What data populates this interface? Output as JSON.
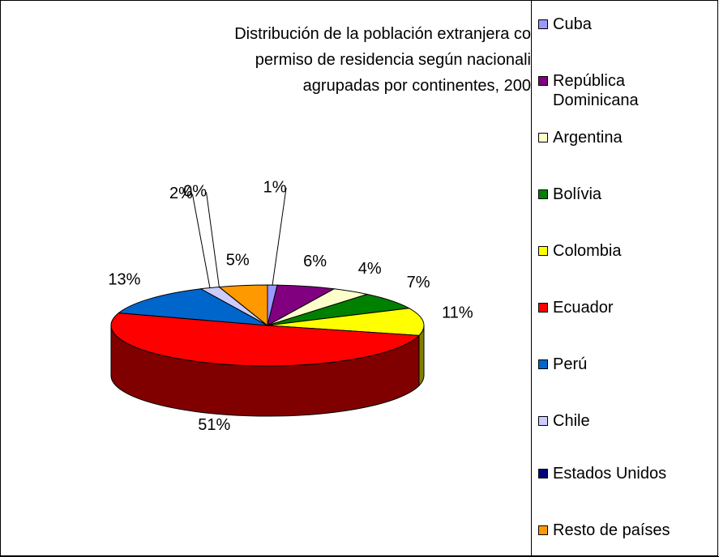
{
  "chart_data": {
    "type": "pie3d",
    "title": [
      "Distribución de la población extranjera co",
      "permiso de residencia según nacionali",
      "agrupadas por continentes, 200"
    ],
    "categories": [
      "Cuba",
      "República Dominicana",
      "Argentina",
      "Bolívia",
      "Colombia",
      "Ecuador",
      "Perú",
      "Chile",
      "Estados Unidos",
      "Resto de países"
    ],
    "values": [
      1,
      6,
      4,
      7,
      11,
      51,
      13,
      2,
      0,
      5
    ],
    "value_labels": [
      "1%",
      "6%",
      "4%",
      "7%",
      "11%",
      "51%",
      "13%",
      "2%",
      "0%",
      "5%"
    ],
    "colors": [
      "#9999ff",
      "#800080",
      "#ffffcc",
      "#008000",
      "#ffff00",
      "#ff0000",
      "#0066cc",
      "#ccccff",
      "#000080",
      "#ff9900"
    ],
    "legend": "right"
  }
}
